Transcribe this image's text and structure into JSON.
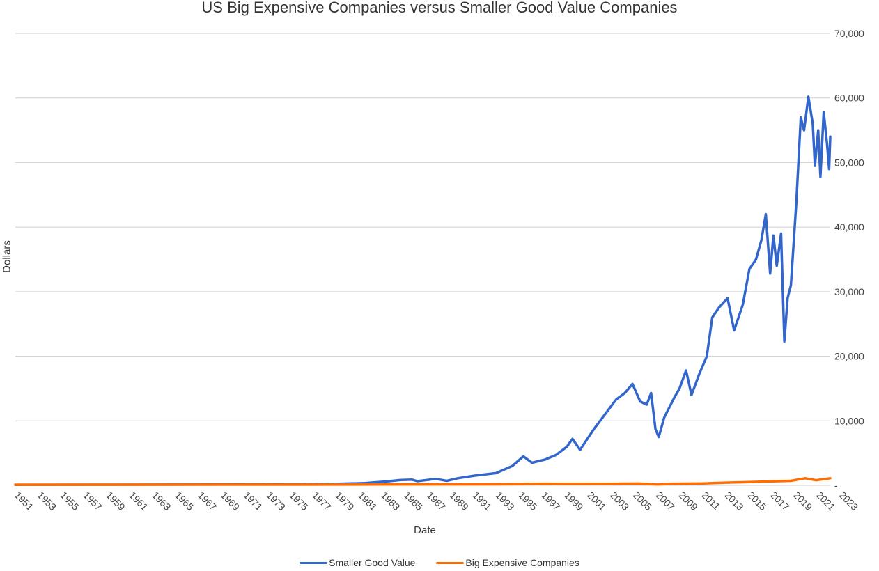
{
  "chart_data": {
    "type": "line",
    "title": "US Big Expensive Companies versus Smaller Good Value Companies",
    "xlabel": "Date",
    "ylabel": "Dollars",
    "x_ticks": [
      "1951",
      "1953",
      "1955",
      "1957",
      "1959",
      "1961",
      "1963",
      "1965",
      "1967",
      "1969",
      "1971",
      "1973",
      "1975",
      "1977",
      "1979",
      "1981",
      "1983",
      "1985",
      "1987",
      "1989",
      "1991",
      "1993",
      "1995",
      "1997",
      "1999",
      "2001",
      "2003",
      "2005",
      "2007",
      "2009",
      "2011",
      "2013",
      "2015",
      "2017",
      "2019",
      "2021",
      "2023"
    ],
    "xlim": [
      1951,
      2023
    ],
    "ylim": [
      0,
      70000
    ],
    "y_ticks": [
      0,
      10000,
      20000,
      30000,
      40000,
      50000,
      60000,
      70000
    ],
    "y_tick_labels": [
      "-",
      "10,000",
      "20,000",
      "30,000",
      "40,000",
      "50,000",
      "60,000",
      "70,000"
    ],
    "grid": true,
    "legend_position": "bottom",
    "series": [
      {
        "name": "Smaller Good Value",
        "color": "#3366cc",
        "points": [
          [
            1951,
            100
          ],
          [
            1960,
            110
          ],
          [
            1970,
            125
          ],
          [
            1977,
            150
          ],
          [
            1980,
            220
          ],
          [
            1983,
            350
          ],
          [
            1985,
            600
          ],
          [
            1986.2,
            820
          ],
          [
            1987.3,
            900
          ],
          [
            1987.8,
            650
          ],
          [
            1989.5,
            1000
          ],
          [
            1990.5,
            700
          ],
          [
            1991.5,
            1100
          ],
          [
            1993,
            1500
          ],
          [
            1995,
            1900
          ],
          [
            1996.5,
            3000
          ],
          [
            1997.5,
            4500
          ],
          [
            1998.3,
            3500
          ],
          [
            1999.5,
            4000
          ],
          [
            2000.5,
            4700
          ],
          [
            2001.5,
            6000
          ],
          [
            2002,
            7200
          ],
          [
            2002.7,
            5500
          ],
          [
            2004,
            8800
          ],
          [
            2004.8,
            10600
          ],
          [
            2006,
            13300
          ],
          [
            2006.8,
            14300
          ],
          [
            2007.5,
            15700
          ],
          [
            2008.2,
            13000
          ],
          [
            2008.8,
            12500
          ],
          [
            2009.2,
            14300
          ],
          [
            2009.6,
            8700
          ],
          [
            2009.9,
            7500
          ],
          [
            2010.4,
            10500
          ],
          [
            2011.3,
            13500
          ],
          [
            2011.8,
            15000
          ],
          [
            2012.4,
            17800
          ],
          [
            2012.9,
            14000
          ],
          [
            2013.6,
            17200
          ],
          [
            2014.3,
            20000
          ],
          [
            2014.8,
            26000
          ],
          [
            2015.4,
            27500
          ],
          [
            2016.2,
            29000
          ],
          [
            2016.8,
            24000
          ],
          [
            2017.6,
            28000
          ],
          [
            2018.2,
            33500
          ],
          [
            2018.8,
            35000
          ],
          [
            2019.3,
            38000
          ],
          [
            2019.7,
            42000
          ],
          [
            2020.1,
            32800
          ],
          [
            2020.4,
            38700
          ],
          [
            2020.7,
            34000
          ],
          [
            2021.1,
            39000
          ],
          [
            2021.4,
            22300
          ],
          [
            2021.7,
            29000
          ],
          [
            2022.0,
            31000
          ],
          [
            2022.5,
            44000
          ],
          [
            2022.9,
            57000
          ],
          [
            2023.2,
            55000
          ],
          [
            2023.6,
            60200
          ],
          [
            2024.0,
            56000
          ],
          [
            2024.2,
            49500
          ],
          [
            2024.5,
            55000
          ],
          [
            2024.7,
            47800
          ],
          [
            2025.0,
            57800
          ],
          [
            2025.3,
            53000
          ],
          [
            2025.5,
            49000
          ],
          [
            2025.6,
            54000
          ]
        ]
      },
      {
        "name": "Big Expensive Companies",
        "color": "#ff6d01",
        "points": [
          [
            1951,
            100
          ],
          [
            1970,
            110
          ],
          [
            1985,
            130
          ],
          [
            1995,
            160
          ],
          [
            1999.5,
            260
          ],
          [
            2001,
            230
          ],
          [
            2003,
            230
          ],
          [
            2006,
            250
          ],
          [
            2008,
            280
          ],
          [
            2009.8,
            150
          ],
          [
            2011,
            250
          ],
          [
            2014,
            300
          ],
          [
            2016,
            420
          ],
          [
            2018,
            500
          ],
          [
            2020,
            600
          ],
          [
            2022,
            700
          ],
          [
            2023.3,
            1100
          ],
          [
            2024.3,
            800
          ],
          [
            2025.6,
            1100
          ]
        ]
      }
    ]
  }
}
